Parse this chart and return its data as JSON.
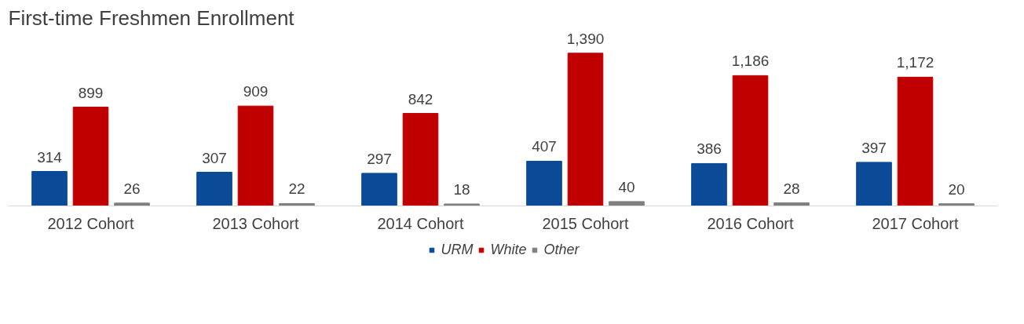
{
  "chart_data": {
    "type": "bar",
    "title": "First-time Freshmen Enrollment",
    "categories": [
      "2012 Cohort",
      "2013 Cohort",
      "2014 Cohort",
      "2015 Cohort",
      "2016 Cohort",
      "2017 Cohort"
    ],
    "series": [
      {
        "name": "URM",
        "color": "#0b4a96",
        "values": [
          314,
          307,
          297,
          407,
          386,
          397
        ],
        "value_labels": [
          "314",
          "307",
          "297",
          "407",
          "386",
          "397"
        ]
      },
      {
        "name": "White",
        "color": "#c00000",
        "values": [
          899,
          909,
          842,
          1390,
          1186,
          1172
        ],
        "value_labels": [
          "899",
          "909",
          "842",
          "1,390",
          "1,186",
          "1,172"
        ]
      },
      {
        "name": "Other",
        "color": "#7f7f7f",
        "values": [
          26,
          22,
          18,
          40,
          28,
          20
        ],
        "value_labels": [
          "26",
          "22",
          "18",
          "40",
          "28",
          "20"
        ]
      }
    ],
    "legend": "bottom",
    "grid": false
  }
}
